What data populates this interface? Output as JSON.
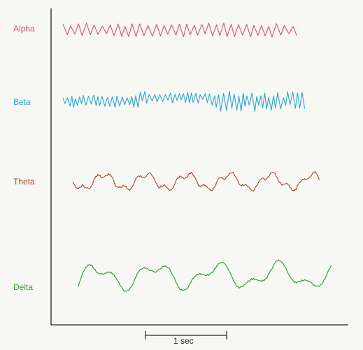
{
  "waves": [
    {
      "label": "Alpha",
      "color": "#d9506e"
    },
    {
      "label": "Beta",
      "color": "#2aa6cf"
    },
    {
      "label": "Theta",
      "color": "#a8472a"
    },
    {
      "label": "Delta",
      "color": "#3a9e3a"
    }
  ],
  "scale_bar": {
    "label": "1 sec"
  }
}
